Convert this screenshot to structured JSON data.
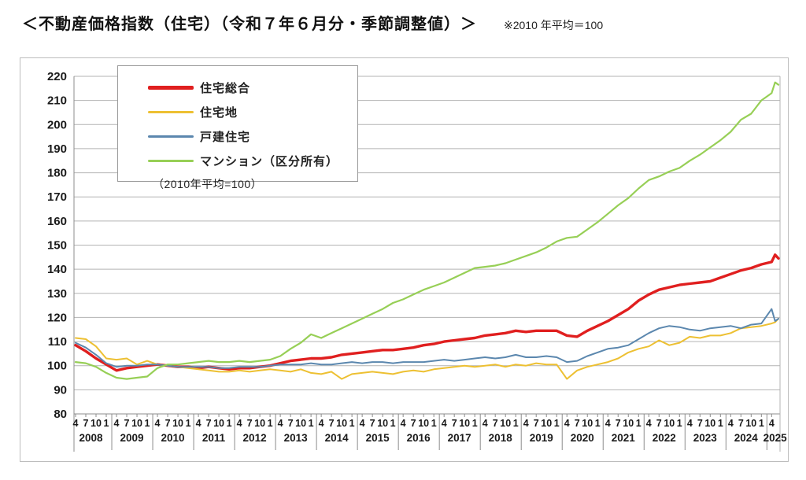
{
  "page": {
    "title": "＜不動産価格指数（住宅）（令和７年６月分・季節調整値）＞",
    "subtitle_note": "※2010 年平均＝100"
  },
  "chart_data": {
    "type": "line",
    "title": "不動産価格指数（住宅）令和7年6月分・季節調整値",
    "inner_note": "（2010年平均=100）",
    "ylim": [
      80,
      220
    ],
    "ytick_step": 10,
    "grid": true,
    "legend_position": "top-left",
    "x_axis_note": "月（4,7,10,1）と年度（2008〜2025）",
    "x_months": [
      "2008-04",
      "2008-07",
      "2008-10",
      "2009-01",
      "2009-04",
      "2009-07",
      "2009-10",
      "2010-01",
      "2010-04",
      "2010-07",
      "2010-10",
      "2011-01",
      "2011-04",
      "2011-07",
      "2011-10",
      "2012-01",
      "2012-04",
      "2012-07",
      "2012-10",
      "2013-01",
      "2013-04",
      "2013-07",
      "2013-10",
      "2014-01",
      "2014-04",
      "2014-07",
      "2014-10",
      "2015-01",
      "2015-04",
      "2015-07",
      "2015-10",
      "2016-01",
      "2016-04",
      "2016-07",
      "2016-10",
      "2017-01",
      "2017-04",
      "2017-07",
      "2017-10",
      "2018-01",
      "2018-04",
      "2018-07",
      "2018-10",
      "2019-01",
      "2019-04",
      "2019-07",
      "2019-10",
      "2020-01",
      "2020-04",
      "2020-07",
      "2020-10",
      "2021-01",
      "2021-04",
      "2021-07",
      "2021-10",
      "2022-01",
      "2022-04",
      "2022-07",
      "2022-10",
      "2023-01",
      "2023-04",
      "2023-07",
      "2023-10",
      "2024-01",
      "2024-04",
      "2024-07",
      "2024-10",
      "2025-01",
      "2025-04",
      "2025-05",
      "2025-06"
    ],
    "series": [
      {
        "name": "住宅総合",
        "color": "#e01f1f",
        "width": 3.4,
        "values": [
          108.5,
          106.0,
          103.0,
          100.5,
          98.0,
          99.0,
          99.5,
          100.0,
          100.5,
          100.0,
          99.5,
          99.5,
          99.0,
          99.5,
          99.0,
          98.5,
          99.0,
          99.0,
          99.5,
          100.0,
          101.0,
          102.0,
          102.5,
          103.0,
          103.0,
          103.5,
          104.5,
          105.0,
          105.5,
          106.0,
          106.5,
          106.5,
          107.0,
          107.5,
          108.5,
          109.0,
          110.0,
          110.5,
          111.0,
          111.5,
          112.5,
          113.0,
          113.5,
          114.5,
          114.0,
          114.5,
          114.5,
          114.5,
          112.5,
          112.0,
          114.5,
          116.5,
          118.5,
          121.0,
          123.5,
          127.0,
          129.5,
          131.5,
          132.5,
          133.5,
          134.0,
          134.5,
          135.0,
          136.5,
          138.0,
          139.5,
          140.5,
          142.0,
          143.0,
          146.0,
          144.5
        ]
      },
      {
        "name": "住宅地",
        "color": "#edc032",
        "width": 2.0,
        "values": [
          111.5,
          111.0,
          108.0,
          103.0,
          102.5,
          103.0,
          100.5,
          102.0,
          100.5,
          100.0,
          99.5,
          99.0,
          98.5,
          98.0,
          97.5,
          97.5,
          98.0,
          97.5,
          98.0,
          98.5,
          98.0,
          97.5,
          98.5,
          97.0,
          96.5,
          97.5,
          94.5,
          96.5,
          97.0,
          97.5,
          97.0,
          96.5,
          97.5,
          98.0,
          97.5,
          98.5,
          99.0,
          99.5,
          100.0,
          99.5,
          100.0,
          100.5,
          99.5,
          100.5,
          100.0,
          101.0,
          100.5,
          100.5,
          94.5,
          98.0,
          99.5,
          100.5,
          101.5,
          103.0,
          105.5,
          107.0,
          108.0,
          110.5,
          108.5,
          109.5,
          112.0,
          111.5,
          112.5,
          112.5,
          113.5,
          115.5,
          116.0,
          116.5,
          117.5,
          118.0,
          119.5
        ]
      },
      {
        "name": "戸建住宅",
        "color": "#5b87ae",
        "width": 2.0,
        "values": [
          109.5,
          107.5,
          104.5,
          101.0,
          99.5,
          100.0,
          100.0,
          100.5,
          100.5,
          100.0,
          99.5,
          99.5,
          99.5,
          99.5,
          99.0,
          99.0,
          99.5,
          99.5,
          99.5,
          100.0,
          100.5,
          100.5,
          100.5,
          101.0,
          100.5,
          100.5,
          101.0,
          101.5,
          101.0,
          101.5,
          101.5,
          101.0,
          101.5,
          101.5,
          101.5,
          102.0,
          102.5,
          102.0,
          102.5,
          103.0,
          103.5,
          103.0,
          103.5,
          104.5,
          103.5,
          103.5,
          104.0,
          103.5,
          101.5,
          102.0,
          104.0,
          105.5,
          107.0,
          107.5,
          108.5,
          111.0,
          113.5,
          115.5,
          116.5,
          116.0,
          115.0,
          114.5,
          115.5,
          116.0,
          116.5,
          115.5,
          117.0,
          117.5,
          123.5,
          118.5,
          119.5
        ]
      },
      {
        "name": "マンション（区分所有）",
        "color": "#97cf56",
        "width": 2.2,
        "values": [
          101.5,
          101.0,
          99.5,
          97.0,
          95.0,
          94.5,
          95.0,
          95.5,
          99.0,
          100.5,
          100.5,
          101.0,
          101.5,
          102.0,
          101.5,
          101.5,
          102.0,
          101.5,
          102.0,
          102.5,
          104.0,
          107.0,
          109.5,
          113.0,
          111.5,
          113.5,
          115.5,
          117.5,
          119.5,
          121.5,
          123.5,
          126.0,
          127.5,
          129.5,
          131.5,
          133.0,
          134.5,
          136.5,
          138.5,
          140.5,
          141.0,
          141.5,
          142.5,
          144.0,
          145.5,
          147.0,
          149.0,
          151.5,
          153.0,
          153.5,
          156.5,
          159.5,
          163.0,
          166.5,
          169.5,
          173.5,
          177.0,
          178.5,
          180.5,
          182.0,
          185.0,
          187.5,
          190.5,
          193.5,
          197.0,
          202.0,
          204.5,
          210.0,
          213.0,
          217.5,
          216.5
        ]
      }
    ]
  }
}
